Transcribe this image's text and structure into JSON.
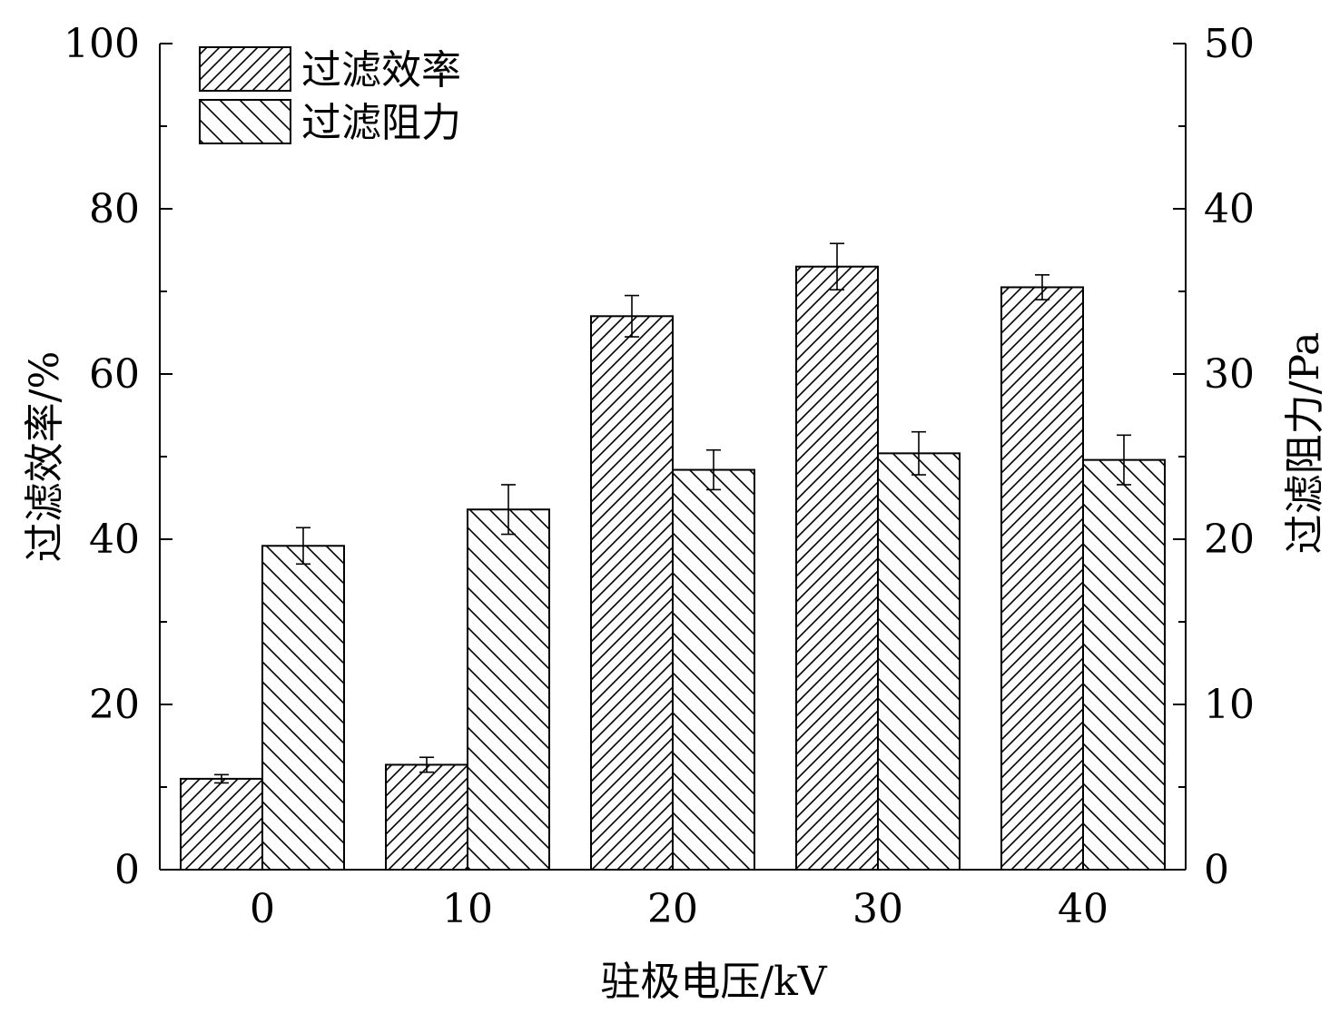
{
  "chart_data": {
    "type": "bar",
    "xlabel": "驻极电压/kV",
    "ylabel_left": "过滤效率/%",
    "ylabel_right": "过滤阻力/Pa",
    "categories": [
      "0",
      "10",
      "20",
      "30",
      "40"
    ],
    "ylim_left": [
      0,
      100
    ],
    "ylim_right": [
      0,
      50
    ],
    "yticks_left": [
      "0",
      "20",
      "40",
      "60",
      "80",
      "100"
    ],
    "yticks_right": [
      "0",
      "10",
      "20",
      "30",
      "40",
      "50"
    ],
    "series": [
      {
        "name": "过滤效率",
        "axis": "left",
        "pattern": "forward-diagonal-hatch",
        "values": [
          11,
          12.7,
          67,
          73,
          70.5
        ],
        "errors": [
          0.5,
          0.9,
          2.5,
          2.8,
          1.5
        ]
      },
      {
        "name": "过滤阻力",
        "axis": "right",
        "pattern": "backward-diagonal-hatch",
        "values": [
          19.6,
          21.8,
          24.2,
          25.2,
          24.8
        ],
        "errors": [
          1.1,
          1.5,
          1.2,
          1.3,
          1.5
        ]
      }
    ],
    "legend": "top-left",
    "grid": false
  }
}
